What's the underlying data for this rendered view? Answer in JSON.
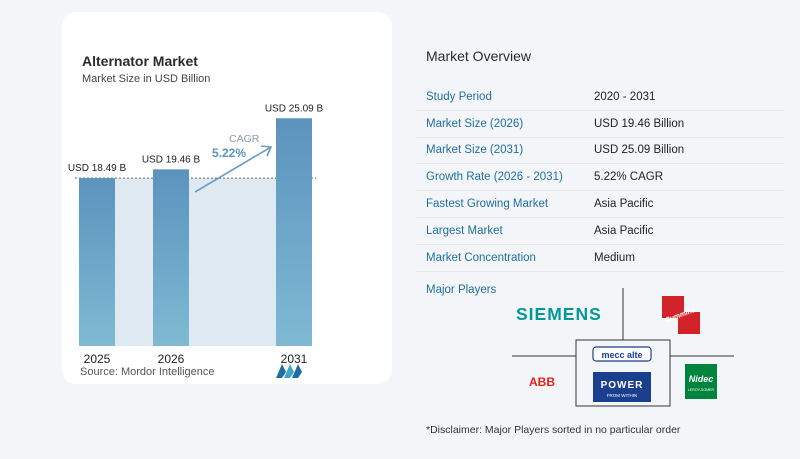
{
  "chart_data": {
    "type": "bar",
    "title": "Alternator Market",
    "subtitle": "Market Size in USD Billion",
    "categories": [
      "2025",
      "2026",
      "2031"
    ],
    "values": [
      18.49,
      19.46,
      25.09
    ],
    "value_labels": [
      "USD 18.49 B",
      "USD 19.46 B",
      "USD 25.09 B"
    ],
    "cagr_label": "CAGR",
    "cagr_value": "5.22%",
    "xlabel": "",
    "ylabel": "",
    "ylim": [
      0,
      26
    ],
    "grid": false,
    "bar_color_top": "#5b93be",
    "bar_color_bottom": "#7fbad3",
    "band_color": "#dfe9f2"
  },
  "source": "Source:  Mordor Intelligence",
  "overview": {
    "title": "Market Overview",
    "rows": [
      {
        "label": "Study Period",
        "value": "2020 - 2031"
      },
      {
        "label": "Market Size (2026)",
        "value": "USD 19.46 Billion"
      },
      {
        "label": "Market Size (2031)",
        "value": "USD 25.09 Billion"
      },
      {
        "label": "Growth Rate (2026 - 2031)",
        "value": "5.22% CAGR"
      },
      {
        "label": "Fastest Growing Market",
        "value": "Asia Pacific"
      },
      {
        "label": "Largest Market",
        "value": "Asia Pacific"
      },
      {
        "label": "Market Concentration",
        "value": "Medium"
      }
    ],
    "players_label": "Major Players",
    "players": [
      "SIEMENS",
      "Cummins",
      "mecc alte",
      "POWER",
      "FROM WITHIN",
      "ABB",
      "Nidec",
      "LEROY-SOMER"
    ]
  },
  "disclaimer": "*Disclaimer: Major Players sorted in no particular order",
  "colors": {
    "accent": "#1e6fa1",
    "siemens": "#009999",
    "cummins": "#d2232a",
    "abb": "#e2231a",
    "mecc": "#1b3f8f",
    "nidec": "#00843d"
  }
}
